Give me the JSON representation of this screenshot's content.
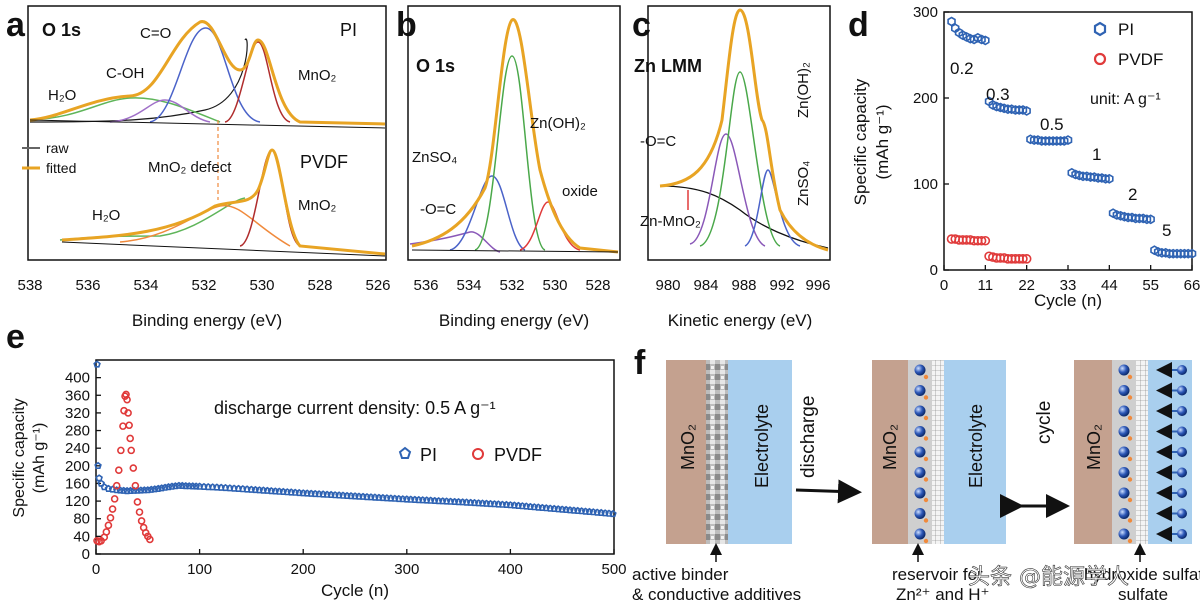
{
  "panels": {
    "a": {
      "label": "a",
      "title": "O 1s",
      "top_label": "PI",
      "bottom_label": "PVDF",
      "legend": [
        "raw",
        "fitted"
      ],
      "xlabel": "Binding energy (eV)",
      "xticks": [
        "538",
        "536",
        "534",
        "532",
        "530",
        "528",
        "526"
      ],
      "peaks_top": [
        "H₂O",
        "C-OH",
        "C=O",
        "MnO₂"
      ],
      "peaks_bottom": [
        "H₂O",
        "MnO₂ defect",
        "MnO₂"
      ]
    },
    "b": {
      "label": "b",
      "title": "O 1s",
      "xlabel": "Binding energy (eV)",
      "xticks": [
        "536",
        "534",
        "532",
        "530",
        "528"
      ],
      "peaks": [
        "ZnSO₄",
        "Zn(OH)₂",
        "-O=C",
        "oxide"
      ]
    },
    "c": {
      "label": "c",
      "title": "Zn LMM",
      "xlabel": "Kinetic energy (eV)",
      "xticks": [
        "980",
        "984",
        "988",
        "992",
        "996"
      ],
      "peaks": [
        "-O=C",
        "Zn(OH)₂",
        "ZnSO₄",
        "Zn-MnO₂"
      ]
    },
    "d": {
      "label": "d",
      "ylabel_main": "Specific capacity",
      "ylabel_unit": "(mAh g⁻¹)",
      "xlabel": "Cycle (n)",
      "legend": [
        "PI",
        "PVDF"
      ],
      "unit_text": "unit: A g⁻¹",
      "rate_labels": [
        "0.2",
        "0.3",
        "0.5",
        "1",
        "2",
        "5"
      ]
    },
    "e": {
      "label": "e",
      "ylabel_main": "Specific capacity",
      "ylabel_unit": "(mAh g⁻¹)",
      "xlabel": "Cycle (n)",
      "annotation": "discharge current density: 0.5 A g⁻¹",
      "legend": [
        "PI",
        "PVDF"
      ]
    },
    "f": {
      "label": "f",
      "electrode": "MnO₂",
      "electrolyte": "Electrolyte",
      "arrow_discharge": "discharge",
      "arrow_cycle": "cycle",
      "caption_left": [
        "active binder",
        "& conductive additives"
      ],
      "caption_mid": [
        "reservoir for",
        "Zn²⁺ and H⁺"
      ],
      "caption_right": [
        "hydroxide sulfate",
        "sulfate"
      ],
      "watermark": "头条 @能源学人"
    }
  },
  "chart_data": [
    {
      "panel": "d",
      "type": "scatter",
      "xlabel": "Cycle (n)",
      "ylabel": "Specific capacity (mAh g⁻¹)",
      "xlim": [
        0,
        66
      ],
      "ylim": [
        0,
        300
      ],
      "xticks": [
        0,
        11,
        22,
        33,
        44,
        55,
        66
      ],
      "yticks": [
        0,
        100,
        200,
        300
      ],
      "series": [
        {
          "name": "PI",
          "color": "#2f63b3",
          "marker": "hexagon",
          "points": [
            [
              2,
              289
            ],
            [
              3,
              281
            ],
            [
              4,
              276
            ],
            [
              5,
              273
            ],
            [
              6,
              271
            ],
            [
              7,
              269
            ],
            [
              8,
              268
            ],
            [
              9,
              270
            ],
            [
              10,
              268
            ],
            [
              11,
              267
            ],
            [
              12,
              196
            ],
            [
              13,
              192
            ],
            [
              14,
              190
            ],
            [
              15,
              189
            ],
            [
              16,
              188
            ],
            [
              17,
              187
            ],
            [
              18,
              187
            ],
            [
              19,
              186
            ],
            [
              20,
              186
            ],
            [
              21,
              186
            ],
            [
              22,
              185
            ],
            [
              23,
              152
            ],
            [
              24,
              151
            ],
            [
              25,
              151
            ],
            [
              26,
              150
            ],
            [
              27,
              150
            ],
            [
              28,
              150
            ],
            [
              29,
              150
            ],
            [
              30,
              150
            ],
            [
              31,
              150
            ],
            [
              32,
              150
            ],
            [
              33,
              151
            ],
            [
              34,
              113
            ],
            [
              35,
              111
            ],
            [
              36,
              110
            ],
            [
              37,
              109
            ],
            [
              38,
              109
            ],
            [
              39,
              108
            ],
            [
              40,
              108
            ],
            [
              41,
              107
            ],
            [
              42,
              107
            ],
            [
              43,
              106
            ],
            [
              44,
              106
            ],
            [
              45,
              66
            ],
            [
              46,
              64
            ],
            [
              47,
              63
            ],
            [
              48,
              62
            ],
            [
              49,
              61
            ],
            [
              50,
              61
            ],
            [
              51,
              60
            ],
            [
              52,
              60
            ],
            [
              53,
              60
            ],
            [
              54,
              59
            ],
            [
              55,
              59
            ],
            [
              56,
              23
            ],
            [
              57,
              21
            ],
            [
              58,
              20
            ],
            [
              59,
              20
            ],
            [
              60,
              19
            ],
            [
              61,
              19
            ],
            [
              62,
              19
            ],
            [
              63,
              19
            ],
            [
              64,
              19
            ],
            [
              65,
              19
            ],
            [
              66,
              19
            ]
          ]
        },
        {
          "name": "PVDF",
          "color": "#e03a3a",
          "marker": "circle",
          "points": [
            [
              2,
              36
            ],
            [
              3,
              36
            ],
            [
              4,
              35
            ],
            [
              5,
              35
            ],
            [
              6,
              35
            ],
            [
              7,
              35
            ],
            [
              8,
              34
            ],
            [
              9,
              34
            ],
            [
              10,
              34
            ],
            [
              11,
              34
            ],
            [
              12,
              16
            ],
            [
              13,
              15
            ],
            [
              14,
              14
            ],
            [
              15,
              14
            ],
            [
              16,
              14
            ],
            [
              17,
              13
            ],
            [
              18,
              13
            ],
            [
              19,
              13
            ],
            [
              20,
              13
            ],
            [
              21,
              13
            ],
            [
              22,
              13
            ]
          ]
        }
      ]
    },
    {
      "panel": "e",
      "type": "scatter",
      "xlabel": "Cycle (n)",
      "ylabel": "Specific capacity (mAh g⁻¹)",
      "xlim": [
        0,
        500
      ],
      "ylim": [
        0,
        440
      ],
      "xticks": [
        0,
        100,
        200,
        300,
        400,
        500
      ],
      "yticks": [
        0,
        40,
        80,
        120,
        160,
        200,
        240,
        280,
        320,
        360,
        400
      ],
      "series": [
        {
          "name": "PI",
          "color": "#2f63b3",
          "marker": "pentagon",
          "points": [
            [
              1,
              430
            ],
            [
              2,
              200
            ],
            [
              3,
              172
            ],
            [
              5,
              160
            ],
            [
              8,
              152
            ],
            [
              12,
              148
            ],
            [
              20,
              145
            ],
            [
              30,
              143
            ],
            [
              40,
              144
            ],
            [
              50,
              145
            ],
            [
              60,
              148
            ],
            [
              70,
              152
            ],
            [
              80,
              155
            ],
            [
              90,
              154
            ],
            [
              100,
              153
            ],
            [
              125,
              150
            ],
            [
              150,
              146
            ],
            [
              200,
              138
            ],
            [
              250,
              131
            ],
            [
              300,
              124
            ],
            [
              350,
              118
            ],
            [
              400,
              111
            ],
            [
              450,
              101
            ],
            [
              480,
              95
            ],
            [
              499,
              91
            ]
          ]
        },
        {
          "name": "PVDF",
          "color": "#e03a3a",
          "marker": "circle",
          "points": [
            [
              1,
              30
            ],
            [
              3,
              28
            ],
            [
              5,
              30
            ],
            [
              8,
              38
            ],
            [
              10,
              50
            ],
            [
              12,
              65
            ],
            [
              14,
              82
            ],
            [
              16,
              102
            ],
            [
              18,
              125
            ],
            [
              20,
              155
            ],
            [
              22,
              190
            ],
            [
              24,
              235
            ],
            [
              26,
              290
            ],
            [
              27,
              325
            ],
            [
              28,
              358
            ],
            [
              29,
              362
            ],
            [
              30,
              350
            ],
            [
              31,
              320
            ],
            [
              32,
              292
            ],
            [
              33,
              262
            ],
            [
              34,
              235
            ],
            [
              36,
              195
            ],
            [
              38,
              155
            ],
            [
              40,
              118
            ],
            [
              42,
              95
            ],
            [
              44,
              75
            ],
            [
              46,
              60
            ],
            [
              48,
              48
            ],
            [
              50,
              40
            ],
            [
              52,
              33
            ]
          ]
        }
      ]
    }
  ]
}
